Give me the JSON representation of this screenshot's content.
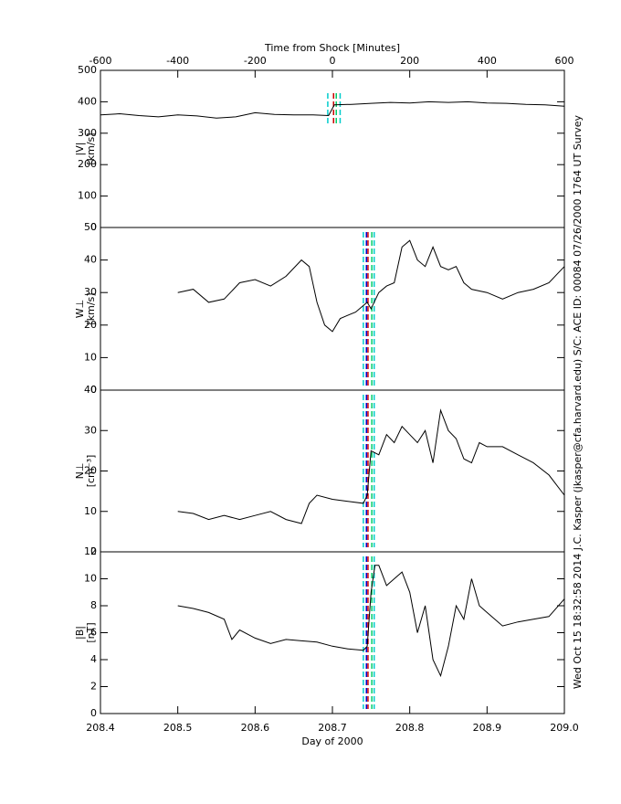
{
  "side_text": "Wed Oct 15 18:32:58 2014   J.C. Kasper (jkasper@cfa.harvard.edu)   S/C: ACE ID: 00084 07/26/2000   1764 UT Survey",
  "chart_data": [
    {
      "type": "line",
      "xlabel": "Time from Shock [Minutes]",
      "ylabel": "|V|",
      "yunit": "[km/s]",
      "color": "#000000",
      "xlim": [
        -600,
        600
      ],
      "xticks": [
        -600,
        -400,
        -200,
        0,
        200,
        400,
        600
      ],
      "ylim": [
        0,
        500
      ],
      "yticks": [
        0,
        100,
        200,
        300,
        400,
        500
      ],
      "x": [
        -600,
        -550,
        -500,
        -450,
        -400,
        -350,
        -300,
        -250,
        -200,
        -150,
        -100,
        -50,
        -10,
        5,
        50,
        100,
        150,
        200,
        250,
        300,
        350,
        400,
        450,
        500,
        550,
        600
      ],
      "values": [
        358,
        362,
        356,
        352,
        358,
        355,
        348,
        352,
        365,
        360,
        358,
        358,
        356,
        390,
        392,
        395,
        398,
        396,
        400,
        398,
        400,
        396,
        395,
        392,
        390,
        386
      ],
      "markers": [
        {
          "x": -12,
          "color": "#00cccc"
        },
        {
          "x": 3,
          "color": "#cc0000"
        },
        {
          "x": 10,
          "color": "#00cc66"
        },
        {
          "x": 20,
          "color": "#00cccc"
        }
      ]
    },
    {
      "type": "line",
      "ylabel": "W⊥",
      "yunit": "[km/s]",
      "color": "#000000",
      "xlim": [
        208.4,
        209.0
      ],
      "ylim": [
        0,
        50
      ],
      "yticks": [
        0,
        10,
        20,
        30,
        40,
        50
      ],
      "x": [
        208.5,
        208.52,
        208.54,
        208.56,
        208.58,
        208.6,
        208.62,
        208.64,
        208.66,
        208.67,
        208.68,
        208.69,
        208.7,
        208.71,
        208.72,
        208.73,
        208.74,
        208.745,
        208.75,
        208.76,
        208.77,
        208.78,
        208.79,
        208.8,
        208.81,
        208.82,
        208.83,
        208.84,
        208.85,
        208.86,
        208.87,
        208.88,
        208.9,
        208.92,
        208.94,
        208.96,
        208.98,
        209.0
      ],
      "values": [
        30,
        31,
        27,
        28,
        33,
        34,
        32,
        35,
        40,
        38,
        27,
        20,
        18,
        22,
        23,
        24,
        26,
        27,
        25,
        30,
        32,
        33,
        44,
        46,
        40,
        38,
        44,
        38,
        37,
        38,
        33,
        31,
        30,
        28,
        30,
        31,
        33,
        38
      ],
      "markers": [
        {
          "x": 208.74,
          "color": "#00cccc"
        },
        {
          "x": 208.744,
          "color": "#0000cc"
        },
        {
          "x": 208.746,
          "color": "#cc0000"
        },
        {
          "x": 208.751,
          "color": "#00cc66"
        },
        {
          "x": 208.754,
          "color": "#00cccc"
        }
      ]
    },
    {
      "type": "line",
      "ylabel": "N⊥",
      "yunit": "[cm⁻³]",
      "color": "#000000",
      "xlim": [
        208.4,
        209.0
      ],
      "ylim": [
        0,
        40
      ],
      "yticks": [
        0,
        10,
        20,
        30,
        40
      ],
      "x": [
        208.5,
        208.52,
        208.54,
        208.56,
        208.58,
        208.6,
        208.62,
        208.64,
        208.66,
        208.67,
        208.68,
        208.7,
        208.72,
        208.74,
        208.745,
        208.75,
        208.76,
        208.77,
        208.78,
        208.79,
        208.8,
        208.81,
        208.82,
        208.83,
        208.84,
        208.85,
        208.86,
        208.87,
        208.88,
        208.89,
        208.9,
        208.92,
        208.94,
        208.96,
        208.98,
        209.0
      ],
      "values": [
        10,
        9.5,
        8,
        9,
        8,
        9,
        10,
        8,
        7,
        12,
        14,
        13,
        12.5,
        12,
        14,
        25,
        24,
        29,
        27,
        31,
        29,
        27,
        30,
        22,
        35,
        30,
        28,
        23,
        22,
        27,
        26,
        26,
        24,
        22,
        19,
        14
      ],
      "markers": [
        {
          "x": 208.74,
          "color": "#00cccc"
        },
        {
          "x": 208.744,
          "color": "#0000cc"
        },
        {
          "x": 208.746,
          "color": "#cc0000"
        },
        {
          "x": 208.751,
          "color": "#00cc66"
        },
        {
          "x": 208.754,
          "color": "#00cccc"
        }
      ]
    },
    {
      "type": "line",
      "xlabel": "Day of 2000",
      "ylabel": "|B|",
      "yunit": "[nT]",
      "color": "#000000",
      "xlim": [
        208.4,
        209.0
      ],
      "xticks": [
        208.4,
        208.5,
        208.6,
        208.7,
        208.8,
        208.9,
        {
          "value": 209.0,
          "label": "209.0"
        }
      ],
      "ylim": [
        0,
        12
      ],
      "yticks": [
        0,
        2,
        4,
        6,
        8,
        10,
        12
      ],
      "x": [
        208.5,
        208.52,
        208.54,
        208.56,
        208.57,
        208.58,
        208.6,
        208.62,
        208.64,
        208.66,
        208.68,
        208.7,
        208.72,
        208.74,
        208.745,
        208.75,
        208.755,
        208.76,
        208.77,
        208.78,
        208.79,
        208.8,
        208.81,
        208.82,
        208.83,
        208.84,
        208.85,
        208.86,
        208.87,
        208.88,
        208.89,
        208.9,
        208.92,
        208.94,
        208.96,
        208.98,
        209.0
      ],
      "values": [
        8,
        7.8,
        7.5,
        7,
        5.5,
        6.2,
        5.6,
        5.2,
        5.5,
        5.4,
        5.3,
        5,
        4.8,
        4.7,
        5,
        9,
        11,
        11,
        9.5,
        10,
        10.5,
        9,
        6,
        8,
        4,
        2.8,
        5,
        8,
        7,
        10,
        8,
        7.5,
        6.5,
        6.8,
        7,
        7.2,
        8.5
      ],
      "markers": [
        {
          "x": 208.74,
          "color": "#00cccc"
        },
        {
          "x": 208.744,
          "color": "#0000cc"
        },
        {
          "x": 208.746,
          "color": "#cc0000"
        },
        {
          "x": 208.751,
          "color": "#00cc66"
        },
        {
          "x": 208.754,
          "color": "#00cccc"
        }
      ]
    }
  ]
}
